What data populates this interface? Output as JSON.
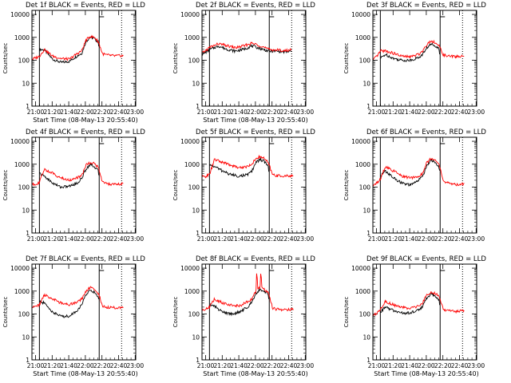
{
  "figure": {
    "background": "#ffffff",
    "colors": {
      "events": "#000000",
      "lld": "#ff0000",
      "axes": "#000000"
    }
  },
  "chart_data": [
    {
      "type": "line",
      "title": "Det 1f BLACK = Events, RED = LLD",
      "xlabel": "Start Time (08-May-13 20:55:40)",
      "ylabel": "Counts/sec",
      "x_ticks": [
        "21:00",
        "21:20",
        "21:40",
        "22:00",
        "22:20",
        "22:40",
        "23:00"
      ],
      "xlim_minutes": [
        0,
        125
      ],
      "ylim": [
        1,
        15000
      ],
      "yscale": "log",
      "y_ticks": [
        "1",
        "10",
        "100",
        "1000",
        "10000"
      ],
      "solid_vlines_min": [
        9,
        81
      ],
      "dotted_vline_min": 108,
      "events_gaps": [
        [
          9,
          81
        ]
      ],
      "series": [
        {
          "name": "Events",
          "color": "#000000",
          "x_min": [
            9,
            15,
            25,
            35,
            45,
            55,
            60,
            65,
            70,
            75,
            80,
            81
          ],
          "values": [
            300,
            280,
            110,
            80,
            90,
            160,
            200,
            650,
            1000,
            900,
            600,
            300
          ]
        },
        {
          "name": "LLD",
          "color": "#ff0000",
          "x_min": [
            0,
            5,
            9,
            15,
            25,
            35,
            45,
            55,
            60,
            65,
            70,
            75,
            80,
            85,
            90,
            100,
            110
          ],
          "values": [
            110,
            130,
            150,
            300,
            150,
            120,
            110,
            200,
            260,
            750,
            1100,
            1000,
            650,
            190,
            170,
            155,
            160
          ]
        }
      ]
    },
    {
      "type": "line",
      "title": "Det 2f BLACK = Events, RED = LLD",
      "xlabel": "Start Time (08-May-13 20:55:40)",
      "ylabel": "Counts/sec",
      "x_ticks": [
        "21:00",
        "21:20",
        "21:40",
        "22:00",
        "22:20",
        "22:40",
        "23:00"
      ],
      "xlim_minutes": [
        0,
        125
      ],
      "ylim": [
        1,
        15000
      ],
      "yscale": "log",
      "y_ticks": [
        "1",
        "10",
        "100",
        "1000",
        "10000"
      ],
      "solid_vlines_min": [
        9,
        81
      ],
      "dotted_vline_min": 108,
      "events_gaps": [],
      "series": [
        {
          "name": "Events",
          "color": "#000000",
          "x_min": [
            0,
            10,
            20,
            30,
            40,
            50,
            60,
            70,
            80,
            90,
            100,
            108
          ],
          "values": [
            180,
            300,
            420,
            300,
            250,
            300,
            420,
            330,
            250,
            250,
            230,
            250
          ]
        },
        {
          "name": "LLD",
          "color": "#ff0000",
          "x_min": [
            0,
            10,
            20,
            30,
            40,
            50,
            60,
            70,
            80,
            90,
            100,
            108
          ],
          "values": [
            200,
            380,
            520,
            430,
            350,
            420,
            550,
            440,
            300,
            280,
            260,
            290
          ]
        }
      ]
    },
    {
      "type": "line",
      "title": "Det 3f BLACK = Events, RED = LLD",
      "xlabel": "",
      "ylabel": "Counts/sec",
      "x_ticks": [
        "21:00",
        "21:20",
        "21:40",
        "22:00",
        "22:20",
        "22:40",
        "23:00"
      ],
      "xlim_minutes": [
        0,
        125
      ],
      "ylim": [
        1,
        15000
      ],
      "yscale": "log",
      "y_ticks": [
        "1",
        "10",
        "100",
        "1000",
        "10000"
      ],
      "solid_vlines_min": [
        9,
        81
      ],
      "dotted_vline_min": 108,
      "events_gaps": [
        [
          9,
          81
        ]
      ],
      "series": [
        {
          "name": "Events",
          "color": "#000000",
          "x_min": [
            9,
            15,
            25,
            35,
            45,
            55,
            60,
            65,
            70,
            75,
            80,
            81
          ],
          "values": [
            120,
            180,
            120,
            100,
            100,
            130,
            180,
            350,
            500,
            450,
            300,
            120
          ]
        },
        {
          "name": "LLD",
          "color": "#ff0000",
          "x_min": [
            0,
            5,
            9,
            15,
            25,
            35,
            45,
            55,
            60,
            65,
            70,
            75,
            80,
            85,
            90,
            100,
            110
          ],
          "values": [
            100,
            150,
            250,
            260,
            200,
            150,
            140,
            180,
            260,
            500,
            700,
            600,
            400,
            170,
            150,
            145,
            150
          ]
        }
      ]
    },
    {
      "type": "line",
      "title": "Det 4f BLACK = Events, RED = LLD",
      "xlabel": "",
      "ylabel": "Counts/sec",
      "x_ticks": [
        "21:00",
        "21:20",
        "21:40",
        "22:00",
        "22:20",
        "22:40",
        "23:00"
      ],
      "xlim_minutes": [
        0,
        125
      ],
      "ylim": [
        1,
        15000
      ],
      "yscale": "log",
      "y_ticks": [
        "1",
        "10",
        "100",
        "1000",
        "10000"
      ],
      "solid_vlines_min": [
        9,
        81
      ],
      "dotted_vline_min": 108,
      "events_gaps": [
        [
          9,
          81
        ]
      ],
      "series": [
        {
          "name": "Events",
          "color": "#000000",
          "x_min": [
            9,
            15,
            25,
            35,
            45,
            55,
            60,
            65,
            70,
            75,
            80,
            81
          ],
          "values": [
            400,
            300,
            150,
            100,
            110,
            150,
            250,
            600,
            1000,
            800,
            500,
            200
          ]
        },
        {
          "name": "LLD",
          "color": "#ff0000",
          "x_min": [
            0,
            5,
            9,
            15,
            25,
            35,
            45,
            55,
            60,
            65,
            70,
            75,
            80,
            85,
            90,
            100,
            110
          ],
          "values": [
            130,
            140,
            160,
            600,
            400,
            250,
            200,
            260,
            320,
            900,
            1200,
            1100,
            700,
            160,
            140,
            130,
            140
          ]
        }
      ]
    },
    {
      "type": "line",
      "title": "Det 5f BLACK = Events, RED = LLD",
      "xlabel": "",
      "ylabel": "Counts/sec",
      "x_ticks": [
        "21:00",
        "21:20",
        "21:40",
        "22:00",
        "22:20",
        "22:40",
        "23:00"
      ],
      "xlim_minutes": [
        0,
        125
      ],
      "ylim": [
        1,
        15000
      ],
      "yscale": "log",
      "y_ticks": [
        "1",
        "10",
        "100",
        "1000",
        "10000"
      ],
      "solid_vlines_min": [
        9,
        81
      ],
      "dotted_vline_min": 108,
      "events_gaps": [
        [
          9,
          81
        ]
      ],
      "series": [
        {
          "name": "Events",
          "color": "#000000",
          "x_min": [
            9,
            15,
            25,
            35,
            45,
            55,
            60,
            65,
            70,
            75,
            80,
            81
          ],
          "values": [
            900,
            800,
            500,
            350,
            300,
            350,
            500,
            1200,
            1600,
            1300,
            800,
            300
          ]
        },
        {
          "name": "LLD",
          "color": "#ff0000",
          "x_min": [
            0,
            5,
            9,
            15,
            25,
            35,
            45,
            55,
            60,
            65,
            70,
            75,
            80,
            85,
            90,
            100,
            110
          ],
          "values": [
            280,
            300,
            350,
            1600,
            1200,
            900,
            700,
            800,
            1000,
            1800,
            2100,
            1800,
            1100,
            350,
            320,
            300,
            320
          ]
        }
      ]
    },
    {
      "type": "line",
      "title": "Det 6f BLACK = Events, RED = LLD",
      "xlabel": "",
      "ylabel": "Counts/sec",
      "x_ticks": [
        "21:00",
        "21:20",
        "21:40",
        "22:00",
        "22:20",
        "22:40",
        "23:00"
      ],
      "xlim_minutes": [
        0,
        125
      ],
      "ylim": [
        1,
        15000
      ],
      "yscale": "log",
      "y_ticks": [
        "1",
        "10",
        "100",
        "1000",
        "10000"
      ],
      "solid_vlines_min": [
        9,
        81
      ],
      "dotted_vline_min": 108,
      "events_gaps": [
        [
          9,
          81
        ]
      ],
      "series": [
        {
          "name": "Events",
          "color": "#000000",
          "x_min": [
            9,
            15,
            25,
            35,
            45,
            55,
            60,
            65,
            70,
            75,
            80,
            81
          ],
          "values": [
            300,
            500,
            250,
            150,
            120,
            200,
            300,
            900,
            1500,
            1200,
            700,
            250
          ]
        },
        {
          "name": "LLD",
          "color": "#ff0000",
          "x_min": [
            0,
            5,
            9,
            15,
            25,
            35,
            45,
            55,
            60,
            65,
            70,
            75,
            80,
            85,
            90,
            100,
            110
          ],
          "values": [
            120,
            150,
            220,
            800,
            500,
            300,
            250,
            300,
            400,
            1200,
            1800,
            1500,
            900,
            180,
            150,
            130,
            140
          ]
        }
      ]
    },
    {
      "type": "line",
      "title": "Det 7f BLACK = Events, RED = LLD",
      "xlabel": "Start Time (08-May-13 20:55:40)",
      "ylabel": "Counts/sec",
      "x_ticks": [
        "21:00",
        "21:20",
        "21:40",
        "22:00",
        "22:20",
        "22:40",
        "23:00"
      ],
      "xlim_minutes": [
        0,
        125
      ],
      "ylim": [
        1,
        15000
      ],
      "yscale": "log",
      "y_ticks": [
        "1",
        "10",
        "100",
        "1000",
        "10000"
      ],
      "solid_vlines_min": [
        9,
        81
      ],
      "dotted_vline_min": 108,
      "events_gaps": [
        [
          9,
          81
        ]
      ],
      "series": [
        {
          "name": "Events",
          "color": "#000000",
          "x_min": [
            9,
            15,
            25,
            35,
            45,
            55,
            60,
            65,
            70,
            75,
            80,
            81
          ],
          "values": [
            350,
            300,
            120,
            80,
            80,
            150,
            250,
            700,
            1100,
            900,
            600,
            250
          ]
        },
        {
          "name": "LLD",
          "color": "#ff0000",
          "x_min": [
            0,
            5,
            9,
            15,
            25,
            35,
            45,
            55,
            60,
            65,
            70,
            75,
            80,
            85,
            90,
            100,
            110
          ],
          "values": [
            200,
            220,
            250,
            700,
            450,
            300,
            250,
            350,
            450,
            1000,
            1400,
            1200,
            800,
            230,
            200,
            190,
            200
          ]
        }
      ]
    },
    {
      "type": "line",
      "title": "Det 8f BLACK = Events, RED = LLD",
      "xlabel": "Start Time (08-May-13 20:55:40)",
      "ylabel": "Counts/sec",
      "x_ticks": [
        "21:00",
        "21:20",
        "21:40",
        "22:00",
        "22:20",
        "22:40",
        "23:00"
      ],
      "xlim_minutes": [
        0,
        125
      ],
      "ylim": [
        1,
        15000
      ],
      "yscale": "log",
      "y_ticks": [
        "1",
        "10",
        "100",
        "1000",
        "10000"
      ],
      "solid_vlines_min": [
        9,
        81
      ],
      "dotted_vline_min": 108,
      "events_gaps": [
        [
          9,
          81
        ]
      ],
      "series": [
        {
          "name": "Events",
          "color": "#000000",
          "x_min": [
            9,
            15,
            25,
            35,
            45,
            55,
            60,
            65,
            70,
            75,
            80,
            81
          ],
          "values": [
            250,
            220,
            120,
            100,
            120,
            200,
            350,
            800,
            1200,
            1000,
            700,
            300
          ]
        },
        {
          "name": "LLD",
          "color": "#ff0000",
          "x_min": [
            0,
            5,
            9,
            15,
            25,
            35,
            45,
            55,
            60,
            65,
            66,
            67,
            70,
            71,
            72,
            75,
            80,
            85,
            90,
            100,
            110
          ],
          "values": [
            150,
            170,
            200,
            450,
            300,
            250,
            220,
            350,
            450,
            1000,
            9000,
            1100,
            1500,
            9000,
            1400,
            1200,
            800,
            180,
            160,
            150,
            160
          ]
        }
      ]
    },
    {
      "type": "line",
      "title": "Det 9f BLACK = Events, RED = LLD",
      "xlabel": "Start Time (08-May-13 20:55:40)",
      "ylabel": "Counts/sec",
      "x_ticks": [
        "21:00",
        "21:20",
        "21:40",
        "22:00",
        "22:20",
        "22:40",
        "23:00"
      ],
      "xlim_minutes": [
        0,
        125
      ],
      "ylim": [
        1,
        15000
      ],
      "yscale": "log",
      "y_ticks": [
        "1",
        "10",
        "100",
        "1000",
        "10000"
      ],
      "solid_vlines_min": [
        9,
        81
      ],
      "dotted_vline_min": 108,
      "events_gaps": [
        [
          9,
          81
        ]
      ],
      "series": [
        {
          "name": "Events",
          "color": "#000000",
          "x_min": [
            9,
            15,
            25,
            35,
            45,
            55,
            60,
            65,
            70,
            75,
            80,
            81
          ],
          "values": [
            120,
            200,
            140,
            110,
            110,
            150,
            220,
            500,
            800,
            600,
            400,
            150
          ]
        },
        {
          "name": "LLD",
          "color": "#ff0000",
          "x_min": [
            0,
            5,
            9,
            15,
            25,
            35,
            45,
            55,
            60,
            65,
            70,
            75,
            80,
            85,
            90,
            100,
            110
          ],
          "values": [
            90,
            110,
            160,
            350,
            250,
            200,
            170,
            220,
            300,
            700,
            900,
            800,
            550,
            150,
            140,
            130,
            140
          ]
        }
      ]
    }
  ]
}
